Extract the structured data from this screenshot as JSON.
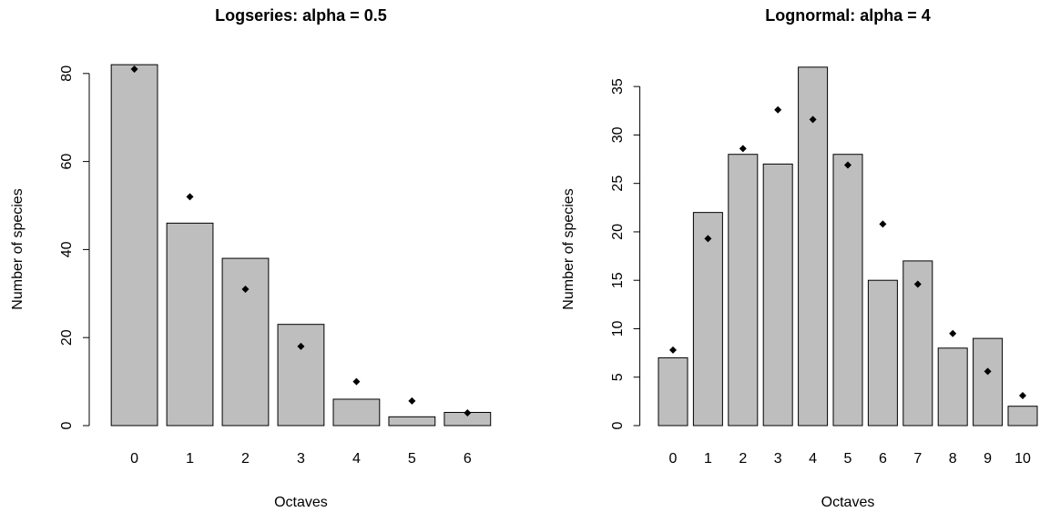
{
  "chart_data": [
    {
      "type": "bar",
      "title": "Logseries: alpha = 0.5",
      "xlabel": "Octaves",
      "ylabel": "Number of species",
      "categories": [
        "0",
        "1",
        "2",
        "3",
        "4",
        "5",
        "6"
      ],
      "values": [
        82,
        46,
        38,
        23,
        6,
        2,
        3
      ],
      "expected": [
        81,
        52,
        31,
        18,
        10,
        5.6,
        2.9
      ],
      "color": "#bebebe",
      "point_color": "#000000",
      "ylim": [
        0,
        84.3
      ],
      "yticks": [
        0,
        20,
        40,
        60,
        80
      ]
    },
    {
      "type": "bar",
      "title": "Lognormal: alpha = 4",
      "xlabel": "Octaves",
      "ylabel": "Number of species",
      "categories": [
        "0",
        "1",
        "2",
        "3",
        "4",
        "5",
        "6",
        "7",
        "8",
        "9",
        "10"
      ],
      "values": [
        7,
        22,
        28,
        27,
        37,
        28,
        15,
        17,
        8,
        9,
        2
      ],
      "expected": [
        7.8,
        19.3,
        28.6,
        32.6,
        31.6,
        26.9,
        20.8,
        14.6,
        9.5,
        5.6,
        3.1
      ],
      "color": "#bebebe",
      "point_color": "#000000",
      "ylim": [
        0,
        38.3
      ],
      "yticks": [
        0,
        5,
        10,
        15,
        20,
        25,
        30,
        35
      ]
    }
  ]
}
